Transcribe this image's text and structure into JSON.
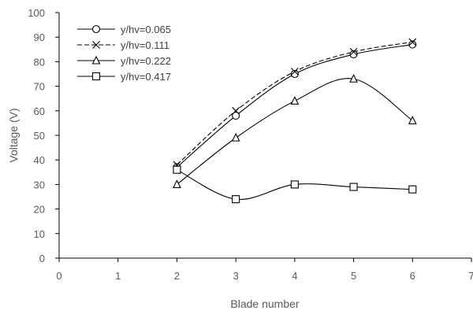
{
  "chart_data": {
    "type": "line",
    "title": "",
    "xlabel": "Blade number",
    "ylabel": "Voltage (V)",
    "xlim": [
      0,
      7
    ],
    "ylim": [
      0,
      100
    ],
    "x_ticks": [
      0,
      1,
      2,
      3,
      4,
      5,
      6,
      7
    ],
    "y_ticks": [
      0,
      10,
      20,
      30,
      40,
      50,
      60,
      70,
      80,
      90,
      100
    ],
    "grid": false,
    "legend_position": "top-left",
    "x": [
      2,
      3,
      4,
      5,
      6
    ],
    "series": [
      {
        "name": "y/hv=0.065",
        "marker": "circle",
        "line": "solid",
        "values": [
          37,
          58,
          75,
          83,
          87
        ]
      },
      {
        "name": "y/hv=0.111",
        "marker": "x",
        "line": "dashed",
        "values": [
          38,
          60,
          76,
          84,
          88
        ]
      },
      {
        "name": "y/hv=0.222",
        "marker": "triangle",
        "line": "solid",
        "values": [
          30,
          49,
          64,
          73,
          56
        ]
      },
      {
        "name": "y/hv=0.417",
        "marker": "square",
        "line": "solid",
        "values": [
          36,
          24,
          30,
          29,
          28
        ]
      }
    ]
  }
}
